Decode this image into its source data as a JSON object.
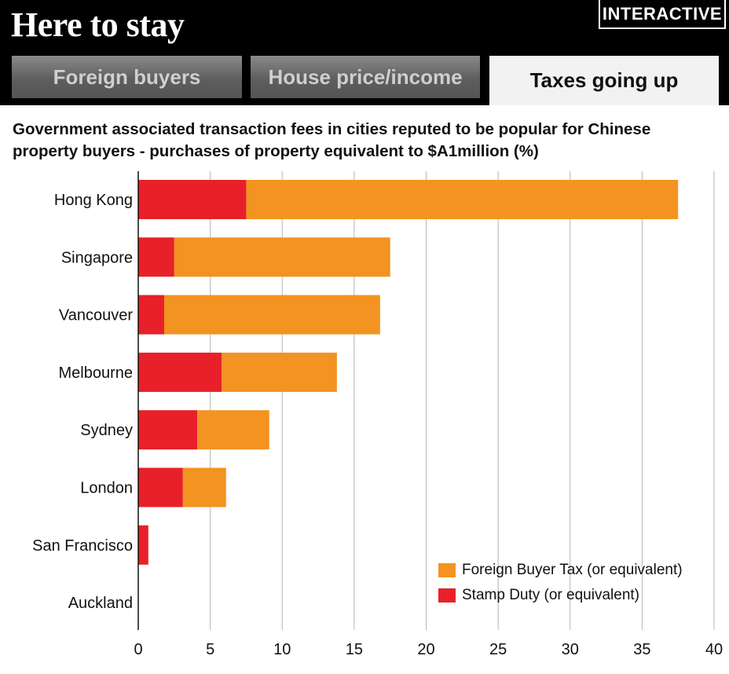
{
  "header": {
    "title": "Here to stay",
    "badge": "INTERACTIVE",
    "tabs": [
      {
        "label": "Foreign buyers"
      },
      {
        "label": "House price/income"
      },
      {
        "label": "Taxes going up"
      }
    ]
  },
  "subtitle": "Government associated transaction fees in cities reputed to be popular for Chinese property buyers - purchases of property equivalent to $A1million (%)",
  "colors": {
    "stamp_duty": "#e8202a",
    "foreign_buyer_tax": "#f39321",
    "grid": "#b5b5b5"
  },
  "chart_data": {
    "type": "bar",
    "orientation": "horizontal",
    "stacked": true,
    "categories": [
      "Hong Kong",
      "Singapore",
      "Vancouver",
      "Melbourne",
      "Sydney",
      "London",
      "San Francisco",
      "Auckland"
    ],
    "series": [
      {
        "name": "Stamp Duty (or equivalent)",
        "color": "#e8202a",
        "values": [
          7.5,
          2.5,
          1.8,
          5.8,
          4.1,
          3.1,
          0.7,
          0
        ]
      },
      {
        "name": "Foreign Buyer Tax (or equivalent)",
        "color": "#f39321",
        "values": [
          30.0,
          15.0,
          15.0,
          8.0,
          5.0,
          3.0,
          0,
          0
        ]
      }
    ],
    "xlim": [
      0,
      40
    ],
    "xticks": [
      "0",
      "5",
      "10",
      "15",
      "20",
      "25",
      "30",
      "35",
      "40"
    ],
    "grid": true,
    "legend": [
      {
        "label": "Foreign Buyer Tax (or equivalent)",
        "color": "#f39321"
      },
      {
        "label": "Stamp Duty (or equivalent)",
        "color": "#e8202a"
      }
    ],
    "legend_position": "bottom-right"
  }
}
